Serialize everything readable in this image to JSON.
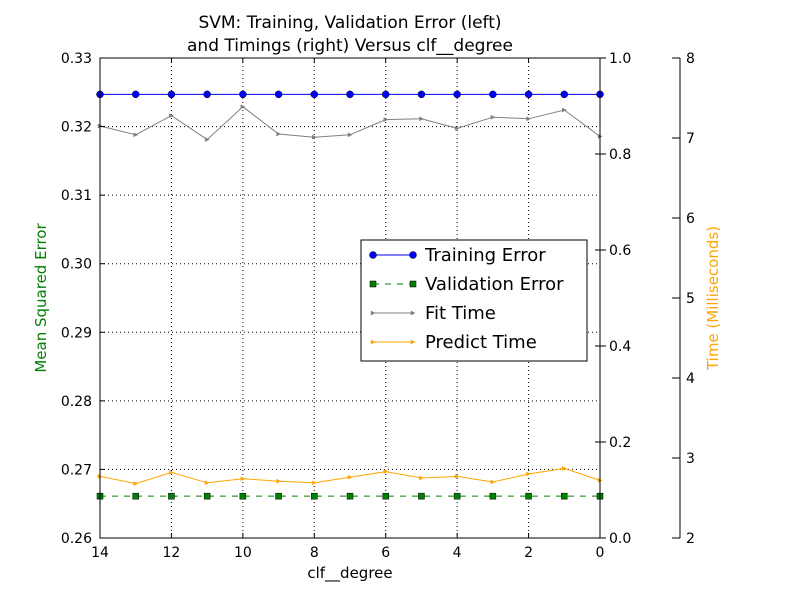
{
  "chart_data": {
    "type": "line",
    "title_line1": "SVM: Training, Validation Error (left)",
    "title_line2": "and Timings (right) Versus clf__degree",
    "xlabel": "clf__degree",
    "ylabel": "Mean Squared Error",
    "ylabel_right": "Time (Milliseconds)",
    "colors": {
      "ylabel": "#008000",
      "ylabel_right": "#FFA500",
      "training": "#0000FF",
      "validation": "#008000",
      "fit": "#808080",
      "predict": "#FFA500"
    },
    "x": [
      14,
      13,
      12,
      11,
      10,
      9,
      8,
      7,
      6,
      5,
      4,
      3,
      2,
      1,
      0
    ],
    "x_reversed": true,
    "xlim": [
      14,
      0
    ],
    "xticks": [
      "14",
      "12",
      "10",
      "8",
      "6",
      "4",
      "2",
      "0"
    ],
    "ylim": [
      0.26,
      0.33
    ],
    "yticks": [
      "0.26",
      "0.27",
      "0.28",
      "0.29",
      "0.30",
      "0.31",
      "0.32",
      "0.33"
    ],
    "y2lim": [
      0.0,
      1.0
    ],
    "y2ticks": [
      "0.0",
      "0.2",
      "0.4",
      "0.6",
      "0.8",
      "1.0"
    ],
    "y3lim": [
      2,
      8
    ],
    "y3ticks": [
      "2",
      "3",
      "4",
      "5",
      "6",
      "7",
      "8"
    ],
    "grid": true,
    "legend_position": "center-right",
    "series": [
      {
        "name": "Training Error",
        "axis": "left",
        "values": [
          0.3247,
          0.3247,
          0.3247,
          0.3247,
          0.3247,
          0.3247,
          0.3247,
          0.3247,
          0.3247,
          0.3247,
          0.3247,
          0.3247,
          0.3247,
          0.3247,
          0.3247
        ]
      },
      {
        "name": "Validation Error",
        "axis": "left",
        "values": [
          0.2661,
          0.2661,
          0.2661,
          0.2661,
          0.2661,
          0.2661,
          0.2661,
          0.2661,
          0.2661,
          0.2661,
          0.2661,
          0.2661,
          0.2661,
          0.2661,
          0.2661
        ]
      },
      {
        "name": "Fit Time",
        "axis": "time",
        "values": [
          7.15,
          7.04,
          7.28,
          6.98,
          7.39,
          7.05,
          7.01,
          7.04,
          7.23,
          7.24,
          7.12,
          7.26,
          7.24,
          7.35,
          7.02
        ]
      },
      {
        "name": "Predict Time",
        "axis": "time",
        "values": [
          2.77,
          2.68,
          2.82,
          2.69,
          2.74,
          2.71,
          2.69,
          2.76,
          2.83,
          2.75,
          2.77,
          2.7,
          2.8,
          2.87,
          2.72
        ]
      }
    ]
  }
}
